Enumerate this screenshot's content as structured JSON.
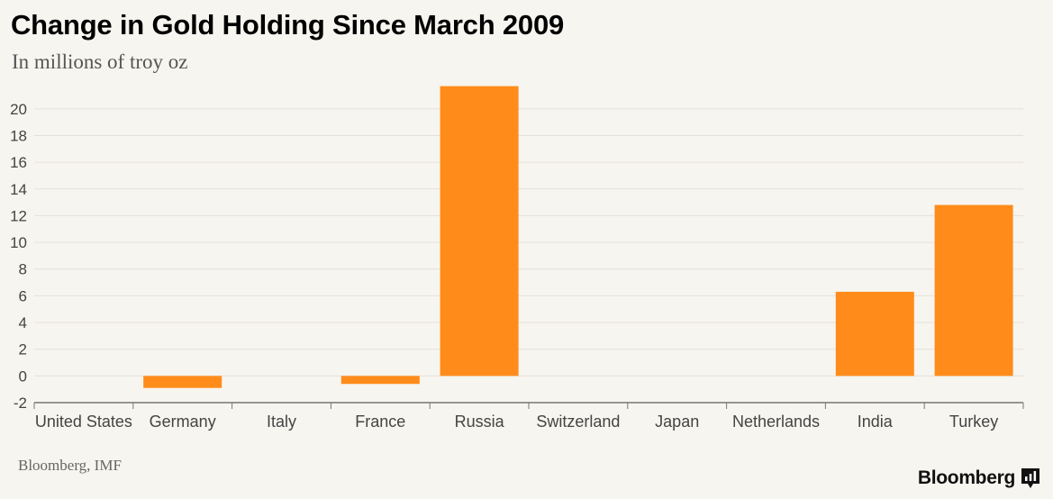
{
  "chart_data": {
    "type": "bar",
    "title": "Change in Gold Holding Since March 2009",
    "subtitle": "In millions of troy oz",
    "categories": [
      "United States",
      "Germany",
      "Italy",
      "France",
      "Russia",
      "Switzerland",
      "Japan",
      "Netherlands",
      "India",
      "Turkey"
    ],
    "values": [
      0,
      -0.9,
      0,
      -0.6,
      21.7,
      0,
      0,
      0,
      6.3,
      12.8
    ],
    "ylim": [
      -2,
      21
    ],
    "yticks": [
      -2,
      0,
      2,
      4,
      6,
      8,
      10,
      12,
      14,
      16,
      18,
      20
    ],
    "xlabel": "",
    "ylabel": "",
    "grid": true,
    "bar_color": "#ff8c1a"
  },
  "source": "Bloomberg, IMF",
  "brand": {
    "name": "Bloomberg",
    "icon": "bloomberg-chart-icon"
  }
}
